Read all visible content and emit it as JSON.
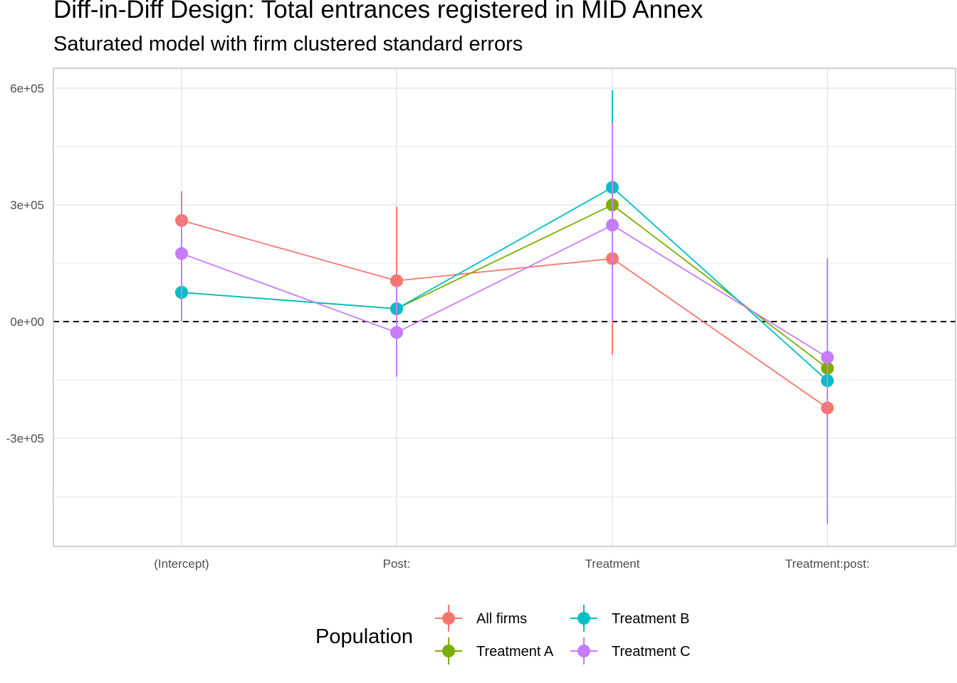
{
  "chart_data": {
    "type": "line",
    "title": "Diff-in-Diff Design: Total entrances registered in MID Annex",
    "subtitle": "Saturated model with firm clustered standard errors",
    "xlabel": "",
    "ylabel": "",
    "categories": [
      "(Intercept)",
      "Post:",
      "Treatment",
      "Treatment:post:"
    ],
    "ylim": [
      -575000,
      600000
    ],
    "y_ticks": [
      -300000,
      0,
      300000,
      600000
    ],
    "y_tick_labels": [
      "-3e+05",
      "0e+00",
      "3e+05",
      "6e+05"
    ],
    "grid": true,
    "reference_line": {
      "y": 0,
      "style": "dashed"
    },
    "legend": {
      "title": "Population",
      "position": "bottom"
    },
    "series": [
      {
        "name": "All firms",
        "color": "#F8766D",
        "values": [
          260000,
          105000,
          162000,
          -222000
        ],
        "lower": [
          0,
          -85000,
          -85000,
          -520000
        ],
        "upper": [
          335000,
          295000,
          330000,
          -395000
        ]
      },
      {
        "name": "Treatment A",
        "color": "#7CAE00",
        "values": [
          75000,
          33000,
          300000,
          -120000
        ],
        "lower": [
          10000,
          0,
          140000,
          -200000
        ],
        "upper": [
          140000,
          70000,
          460000,
          -40000
        ]
      },
      {
        "name": "Treatment B",
        "color": "#00BFC4",
        "values": [
          75000,
          33000,
          345000,
          -152000
        ],
        "lower": [
          10000,
          0,
          90000,
          -390000
        ],
        "upper": [
          140000,
          90000,
          595000,
          90000
        ]
      },
      {
        "name": "Treatment C",
        "color": "#C77CFF",
        "values": [
          175000,
          -28000,
          248000,
          -92000
        ],
        "lower": [
          0,
          -142000,
          0,
          -520000
        ],
        "upper": [
          300000,
          95000,
          510000,
          163000
        ]
      }
    ]
  }
}
